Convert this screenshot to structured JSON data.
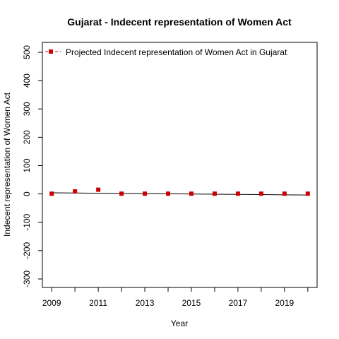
{
  "chart_data": {
    "type": "line",
    "title": "Gujarat  -  Indecent representation of Women Act",
    "xlabel": "Year",
    "ylabel": "Indecent representation of Women Act",
    "x": [
      2009,
      2010,
      2011,
      2012,
      2013,
      2014,
      2015,
      2016,
      2017,
      2018,
      2019,
      2020
    ],
    "x_tick_labels": [
      "2009",
      "2011",
      "2013",
      "2015",
      "2017",
      "2019"
    ],
    "y_tick_labels": [
      "-300",
      "-200",
      "-100",
      "0",
      "100",
      "200",
      "300",
      "400",
      "500"
    ],
    "xlim": [
      2008.6,
      2020.4
    ],
    "ylim": [
      -330,
      535
    ],
    "grid": false,
    "legend_position": "top-left",
    "series": [
      {
        "name": "Projected  Indecent representation of Women Act  in  Gujarat",
        "color": "#cc0000",
        "values": [
          1,
          9,
          15,
          1,
          1,
          1,
          1,
          1,
          1,
          1,
          1,
          1
        ]
      }
    ],
    "fit_line": {
      "color": "#000000",
      "values": [
        4,
        3.3,
        2.6,
        1.9,
        1.2,
        0.5,
        -0.2,
        -0.9,
        -1.6,
        -2.3,
        -3.0,
        -3.7
      ]
    }
  }
}
